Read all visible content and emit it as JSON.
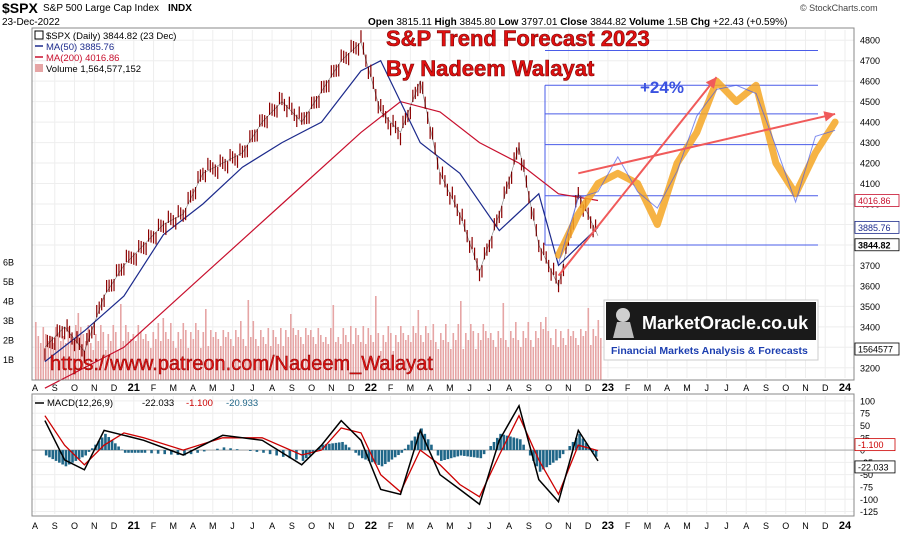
{
  "header": {
    "ticker": "$SPX",
    "name": "S&P 500 Large Cap Index",
    "exchange": "INDX",
    "date": "23-Dec-2022",
    "open_label": "Open",
    "open": "3815.11",
    "high_label": "High",
    "high": "3845.80",
    "low_label": "Low",
    "low": "3797.01",
    "close_label": "Close",
    "close": "3844.82",
    "volume_label": "Volume",
    "volume": "1.5B",
    "chg_label": "Chg",
    "chg": "+22.43 (+0.59%)",
    "watermark": "© StockCharts.com"
  },
  "legend": {
    "price": "$SPX (Daily) 3844.82 (23 Dec)",
    "ma50": "MA(50) 3885.76",
    "ma200": "MA(200) 4016.86",
    "volume": "Volume 1,564,577,152"
  },
  "overlay": {
    "title_line1": "S&P Trend Forecast 2023",
    "title_line2": "By Nadeem Walayat",
    "percent": "+24%",
    "url": "https://www.patreon.com/Nadeem_Walayat",
    "logo_text": "MarketOracle.co.uk",
    "logo_tagline": "Financial Markets Analysis & Forecasts"
  },
  "macd": {
    "label": "MACD(12,26,9)",
    "macd_value": "-22.033",
    "signal_value": "-1.100",
    "hist_value": "-20.933"
  },
  "colors": {
    "price_bar": "#8b0000",
    "ma50": "#1c2a8c",
    "ma200": "#c8102e",
    "volume": "#e6a5a5",
    "forecast": "#f5a623",
    "trend_arrow": "#f05a5a",
    "level_line": "#4a5ce8",
    "macd_line": "#000000",
    "signal_line": "#cc0000",
    "hist": "#1f6688",
    "title_red": "#e01010",
    "percent_blue": "#3a52e0"
  },
  "chart_data": [
    {
      "type": "bar",
      "panel": "price",
      "title": "$SPX (Daily) 3844.82 (23 Dec)",
      "x_ticks": [
        "A",
        "S",
        "O",
        "N",
        "D",
        "21",
        "F",
        "M",
        "A",
        "M",
        "J",
        "J",
        "A",
        "S",
        "O",
        "N",
        "D",
        "22",
        "F",
        "M",
        "A",
        "M",
        "J",
        "J",
        "A",
        "S",
        "O",
        "N",
        "D",
        "23",
        "F",
        "M",
        "A",
        "M",
        "J",
        "J",
        "A",
        "S",
        "O",
        "N",
        "D",
        "24"
      ],
      "y_ticks": [
        3200,
        3300,
        3400,
        3500,
        3600,
        3700,
        3800,
        3900,
        4000,
        4100,
        4200,
        4300,
        4400,
        4500,
        4600,
        4700,
        4800
      ],
      "ylim": [
        3150,
        4850
      ],
      "volume_ticks": [
        "1B",
        "2B",
        "3B",
        "4B",
        "5B",
        "6B"
      ],
      "price_labels": [
        "4016.86",
        "3885.76",
        "3844.82",
        "1564577"
      ],
      "price_path": {
        "x": [
          "2020-08",
          "2020-09",
          "2020-10",
          "2020-11",
          "2020-12",
          "2021-01",
          "2021-02",
          "2021-03",
          "2021-04",
          "2021-05",
          "2021-06",
          "2021-07",
          "2021-08",
          "2021-09",
          "2021-10",
          "2021-11",
          "2021-12",
          "2022-01",
          "2022-02",
          "2022-03",
          "2022-04",
          "2022-05",
          "2022-06",
          "2022-07",
          "2022-08",
          "2022-09",
          "2022-10",
          "2022-11",
          "2022-12"
        ],
        "y": [
          3300,
          3400,
          3280,
          3550,
          3700,
          3800,
          3900,
          3950,
          4150,
          4200,
          4250,
          4400,
          4500,
          4400,
          4550,
          4700,
          4790,
          4450,
          4350,
          4600,
          4150,
          3950,
          3670,
          3950,
          4280,
          3800,
          3600,
          4050,
          3845
        ]
      },
      "ma50": {
        "x": [
          "2020-08",
          "2020-10",
          "2020-12",
          "2021-02",
          "2021-04",
          "2021-06",
          "2021-08",
          "2021-10",
          "2021-12",
          "2022-01",
          "2022-03",
          "2022-05",
          "2022-07",
          "2022-09",
          "2022-10",
          "2022-12"
        ],
        "y": [
          3230,
          3380,
          3550,
          3850,
          4000,
          4180,
          4300,
          4400,
          4650,
          4700,
          4300,
          4150,
          3870,
          4050,
          3700,
          3886
        ]
      },
      "ma200": {
        "x": [
          "2020-08",
          "2020-12",
          "2021-04",
          "2021-08",
          "2021-12",
          "2022-02",
          "2022-04",
          "2022-06",
          "2022-08",
          "2022-10",
          "2022-12"
        ],
        "y": [
          3100,
          3300,
          3650,
          4000,
          4350,
          4500,
          4450,
          4300,
          4200,
          4050,
          4017
        ]
      },
      "forecast_path": {
        "x": [
          "2022-10",
          "2022-11",
          "2022-12",
          "2023-01",
          "2023-02",
          "2023-03",
          "2023-04",
          "2023-05",
          "2023-06",
          "2023-07",
          "2023-08",
          "2023-09",
          "2023-10",
          "2023-11",
          "2023-12"
        ],
        "y": [
          3750,
          3950,
          4100,
          4150,
          4100,
          3900,
          4200,
          4350,
          4600,
          4500,
          4580,
          4200,
          4050,
          4250,
          4400
        ]
      },
      "horizontal_levels": [
        4750,
        4580,
        4440,
        4290,
        4040,
        3800
      ],
      "trend_arrows": [
        {
          "from": [
            "2022-10",
            3650
          ],
          "to": [
            "2023-06",
            4620
          ]
        },
        {
          "from": [
            "2022-11",
            4150
          ],
          "to": [
            "2023-12",
            4440
          ]
        }
      ]
    },
    {
      "type": "line",
      "panel": "macd",
      "title": "MACD(12,26,9)",
      "y_ticks": [
        -125,
        -100,
        -75,
        -50,
        -25,
        0,
        25,
        50,
        75,
        100
      ],
      "ylim": [
        -130,
        110
      ],
      "value_labels": [
        "-1.100",
        "-22.033"
      ],
      "series": [
        {
          "name": "MACD(12,26,9)",
          "x": [
            "2020-08",
            "2020-09",
            "2020-10",
            "2020-11",
            "2020-12",
            "2021-01",
            "2021-03",
            "2021-05",
            "2021-07",
            "2021-09",
            "2021-10",
            "2021-11",
            "2021-12",
            "2022-01",
            "2022-02",
            "2022-03",
            "2022-04",
            "2022-05",
            "2022-06",
            "2022-07",
            "2022-08",
            "2022-09",
            "2022-10",
            "2022-11",
            "2022-12"
          ],
          "y": [
            60,
            -20,
            -40,
            40,
            30,
            20,
            -10,
            30,
            20,
            -30,
            10,
            60,
            20,
            -80,
            -90,
            40,
            -50,
            -80,
            -110,
            20,
            90,
            -60,
            -105,
            40,
            -22
          ]
        },
        {
          "name": "signal",
          "x": [
            "2020-08",
            "2020-09",
            "2020-10",
            "2020-11",
            "2020-12",
            "2021-01",
            "2021-03",
            "2021-05",
            "2021-07",
            "2021-09",
            "2021-10",
            "2021-11",
            "2021-12",
            "2022-01",
            "2022-02",
            "2022-03",
            "2022-04",
            "2022-05",
            "2022-06",
            "2022-07",
            "2022-08",
            "2022-09",
            "2022-10",
            "2022-11",
            "2022-12"
          ],
          "y": [
            70,
            10,
            -30,
            10,
            35,
            25,
            0,
            25,
            25,
            -10,
            0,
            45,
            35,
            -50,
            -85,
            0,
            -30,
            -70,
            -95,
            -10,
            70,
            -20,
            -90,
            10,
            -1
          ]
        }
      ]
    }
  ]
}
